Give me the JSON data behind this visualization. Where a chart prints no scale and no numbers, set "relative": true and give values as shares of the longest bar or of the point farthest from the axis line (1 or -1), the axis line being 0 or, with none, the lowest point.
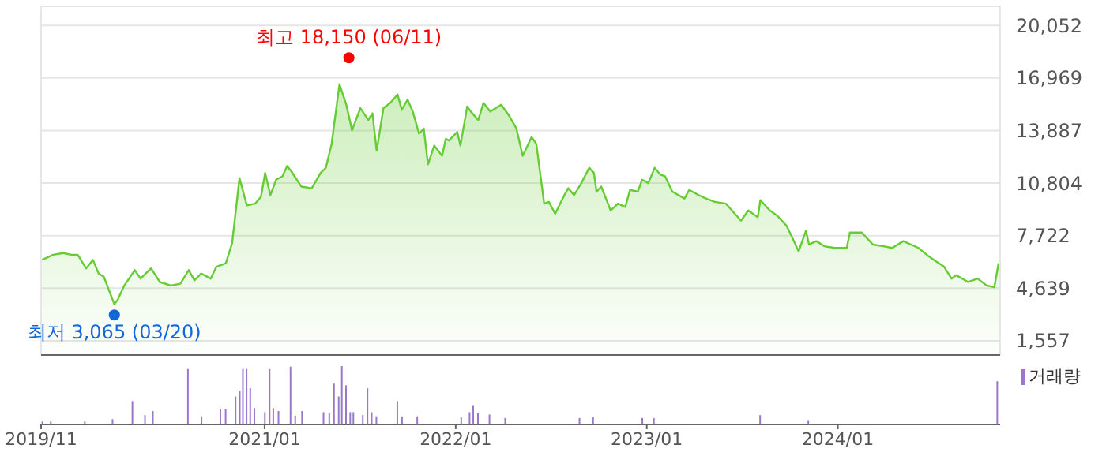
{
  "chart_data": [
    {
      "type": "area",
      "color": "#66cc33",
      "grid": true,
      "tick_labels": "y",
      "xlim": [
        "2019-11-01",
        "2024-11-06"
      ],
      "xticks": [
        {
          "value": "2019-11-01",
          "label": null
        },
        {
          "value": "2021-01-01",
          "label": null
        },
        {
          "value": "2022-01-01",
          "label": null
        },
        {
          "value": "2023-01-01",
          "label": null
        },
        {
          "value": "2024-01-01",
          "label": null
        }
      ],
      "ylim": [
        720,
        21170
      ],
      "yticks": [
        {
          "value": 1557,
          "label": "1,557"
        },
        {
          "value": 4639,
          "label": "4,639"
        },
        {
          "value": 7722,
          "label": "7,722"
        },
        {
          "value": 10804,
          "label": "10,804"
        },
        {
          "value": 13887,
          "label": "13,887"
        },
        {
          "value": 16969,
          "label": "16,969"
        },
        {
          "value": 20052,
          "label": "20,052"
        }
      ],
      "annotations": [
        {
          "text": "최고 18,150 (06/11)",
          "x": "2021-06-11",
          "y": 18150
        },
        {
          "text": "최저 3,065 (03/20)",
          "x": "2020-03-20",
          "y": 3065
        }
      ],
      "x": [
        "2019-11-03",
        "2019-11-24",
        "2019-12-14",
        "2019-12-28",
        "2020-01-10",
        "2020-01-26",
        "2020-02-08",
        "2020-02-19",
        "2020-02-29",
        "2020-03-20",
        "2020-03-27",
        "2020-04-08",
        "2020-04-28",
        "2020-05-09",
        "2020-05-29",
        "2020-06-15",
        "2020-07-06",
        "2020-07-24",
        "2020-08-09",
        "2020-08-20",
        "2020-09-02",
        "2020-09-20",
        "2020-10-01",
        "2020-10-19",
        "2020-10-31",
        "2020-11-14",
        "2020-11-28",
        "2020-12-14",
        "2020-12-25",
        "2021-01-02",
        "2021-01-12",
        "2021-01-23",
        "2021-02-04",
        "2021-02-13",
        "2021-02-21",
        "2021-03-12",
        "2021-04-01",
        "2021-04-18",
        "2021-04-28",
        "2021-05-09",
        "2021-05-24",
        "2021-06-06",
        "2021-06-17",
        "2021-07-03",
        "2021-07-18",
        "2021-07-26",
        "2021-08-03",
        "2021-08-16",
        "2021-08-29",
        "2021-09-12",
        "2021-09-20",
        "2021-10-01",
        "2021-10-11",
        "2021-10-23",
        "2021-11-01",
        "2021-11-09",
        "2021-11-21",
        "2021-12-06",
        "2021-12-13",
        "2021-12-19",
        "2022-01-04",
        "2022-01-10",
        "2022-01-23",
        "2022-01-30",
        "2022-02-13",
        "2022-02-23",
        "2022-03-08",
        "2022-03-29",
        "2022-04-12",
        "2022-04-27",
        "2022-05-09",
        "2022-05-26",
        "2022-06-04",
        "2022-06-19",
        "2022-06-28",
        "2022-07-10",
        "2022-07-26",
        "2022-08-04",
        "2022-08-15",
        "2022-08-29",
        "2022-09-13",
        "2022-09-22",
        "2022-09-27",
        "2022-10-06",
        "2022-10-24",
        "2022-11-07",
        "2022-11-21",
        "2022-11-30",
        "2022-12-15",
        "2022-12-23",
        "2023-01-04",
        "2023-01-16",
        "2023-01-27",
        "2023-02-05",
        "2023-02-19",
        "2023-03-14",
        "2023-03-23",
        "2023-04-10",
        "2023-04-24",
        "2023-05-11",
        "2023-06-01",
        "2023-06-30",
        "2023-07-14",
        "2023-08-01",
        "2023-08-06",
        "2023-08-24",
        "2023-09-07",
        "2023-09-25",
        "2023-10-06",
        "2023-10-18",
        "2023-11-01",
        "2023-11-07",
        "2023-11-21",
        "2023-12-06",
        "2023-12-26",
        "2024-01-18",
        "2024-01-24",
        "2024-02-16",
        "2024-03-08",
        "2024-03-28",
        "2024-04-14",
        "2024-05-05",
        "2024-06-03",
        "2024-06-23",
        "2024-07-07",
        "2024-07-22",
        "2024-08-05",
        "2024-08-14",
        "2024-09-06",
        "2024-09-24",
        "2024-10-11",
        "2024-10-26",
        "2024-11-03"
      ],
      "values": [
        6300,
        6600,
        6700,
        6600,
        6600,
        5800,
        6300,
        5500,
        5300,
        3700,
        4000,
        4800,
        5700,
        5200,
        5800,
        5000,
        4800,
        4900,
        5700,
        5100,
        5500,
        5200,
        5900,
        6100,
        7300,
        11100,
        9500,
        9600,
        10000,
        11400,
        10100,
        11000,
        11200,
        11800,
        11500,
        10600,
        10500,
        11400,
        11700,
        13100,
        16600,
        15400,
        13900,
        15200,
        14500,
        14900,
        12700,
        15200,
        15500,
        16000,
        15100,
        15700,
        15000,
        13700,
        14000,
        11900,
        13000,
        12400,
        13400,
        13300,
        13800,
        13000,
        15300,
        15000,
        14500,
        15500,
        15000,
        15400,
        14800,
        14000,
        12400,
        13500,
        13100,
        9600,
        9700,
        9000,
        10000,
        10500,
        10100,
        10800,
        11700,
        11400,
        10300,
        10600,
        9200,
        9600,
        9400,
        10400,
        10300,
        11000,
        10800,
        11700,
        11300,
        11200,
        10300,
        9900,
        10400,
        10100,
        9900,
        9700,
        9600,
        8600,
        9200,
        8800,
        9800,
        9200,
        8900,
        8300,
        7600,
        6800,
        8000,
        7200,
        7400,
        7100,
        7000,
        7000,
        7900,
        7900,
        7200,
        7100,
        7000,
        7400,
        7000,
        6500,
        6200,
        5900,
        5200,
        5400,
        5000,
        5200,
        4800,
        4700,
        6100
      ]
    },
    {
      "type": "bar",
      "relative": true,
      "tick_labels": "x",
      "legend": "top right",
      "xlim": [
        "2019-11-01",
        "2024-11-06"
      ],
      "xticks": [
        {
          "value": "2019-11-01",
          "label": "2019/11"
        },
        {
          "value": "2021-01-01",
          "label": "2021/01"
        },
        {
          "value": "2022-01-01",
          "label": "2022/01"
        },
        {
          "value": "2023-01-01",
          "label": "2023/01"
        },
        {
          "value": "2024-01-01",
          "label": "2024/01"
        }
      ],
      "x": [
        "2019-11-05",
        "2019-11-21",
        "2020-01-25",
        "2020-03-18",
        "2020-04-25",
        "2020-05-19",
        "2020-06-03",
        "2020-08-09",
        "2020-09-04",
        "2020-10-10",
        "2020-10-20",
        "2020-11-08",
        "2020-11-16",
        "2020-11-22",
        "2020-11-29",
        "2020-12-06",
        "2020-12-14",
        "2021-01-03",
        "2021-01-12",
        "2021-01-19",
        "2021-01-29",
        "2021-02-21",
        "2021-03-02",
        "2021-03-15",
        "2021-04-25",
        "2021-05-06",
        "2021-05-15",
        "2021-05-24",
        "2021-05-30",
        "2021-06-07",
        "2021-06-15",
        "2021-06-21",
        "2021-07-09",
        "2021-07-18",
        "2021-07-26",
        "2021-08-04",
        "2021-09-13",
        "2021-09-22",
        "2021-10-21",
        "2022-01-13",
        "2022-01-29",
        "2022-02-05",
        "2022-02-14",
        "2022-03-08",
        "2022-04-07",
        "2022-08-27",
        "2022-09-22",
        "2022-12-25",
        "2023-01-16",
        "2023-08-07",
        "2023-11-07",
        "2024-11-02"
      ],
      "series": [
        {
          "name": "거래량",
          "color": "#9977cc",
          "values": [
            0.05,
            0.05,
            0.05,
            0.09,
            0.4,
            0.16,
            0.23,
            0.95,
            0.14,
            0.26,
            0.26,
            0.48,
            0.58,
            0.95,
            0.95,
            0.62,
            0.28,
            0.21,
            0.95,
            0.28,
            0.23,
            0.99,
            0.15,
            0.23,
            0.21,
            0.19,
            0.7,
            0.48,
            1,
            0.67,
            0.21,
            0.21,
            0.16,
            0.62,
            0.21,
            0.14,
            0.4,
            0.14,
            0.14,
            0.12,
            0.21,
            0.33,
            0.19,
            0.17,
            0.11,
            0.11,
            0.12,
            0.11,
            0.11,
            0.16,
            0.06,
            0.74
          ]
        }
      ]
    }
  ]
}
